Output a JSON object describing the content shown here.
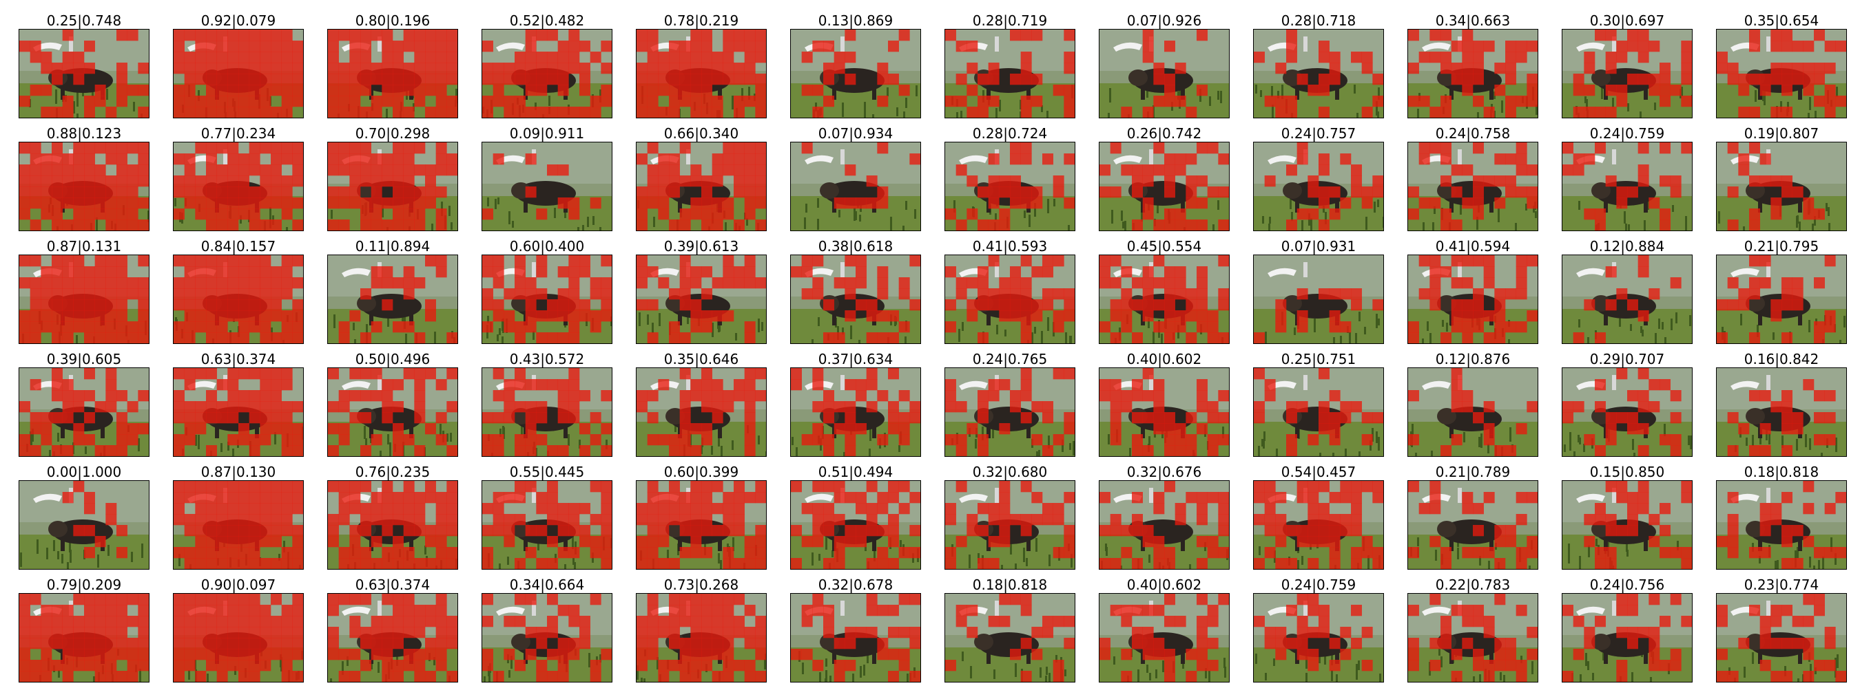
{
  "figure": {
    "rows": 6,
    "cols": 12,
    "overlay_color": "#e8190d",
    "panels": [
      {
        "label": "0.25|0.748"
      },
      {
        "label": "0.92|0.079"
      },
      {
        "label": "0.80|0.196"
      },
      {
        "label": "0.52|0.482"
      },
      {
        "label": "0.78|0.219"
      },
      {
        "label": "0.13|0.869"
      },
      {
        "label": "0.28|0.719"
      },
      {
        "label": "0.07|0.926"
      },
      {
        "label": "0.28|0.718"
      },
      {
        "label": "0.34|0.663"
      },
      {
        "label": "0.30|0.697"
      },
      {
        "label": "0.35|0.654"
      },
      {
        "label": "0.88|0.123"
      },
      {
        "label": "0.77|0.234"
      },
      {
        "label": "0.70|0.298"
      },
      {
        "label": "0.09|0.911"
      },
      {
        "label": "0.66|0.340"
      },
      {
        "label": "0.07|0.934"
      },
      {
        "label": "0.28|0.724"
      },
      {
        "label": "0.26|0.742"
      },
      {
        "label": "0.24|0.757"
      },
      {
        "label": "0.24|0.758"
      },
      {
        "label": "0.24|0.759"
      },
      {
        "label": "0.19|0.807"
      },
      {
        "label": "0.87|0.131"
      },
      {
        "label": "0.84|0.157"
      },
      {
        "label": "0.11|0.894"
      },
      {
        "label": "0.60|0.400"
      },
      {
        "label": "0.39|0.613"
      },
      {
        "label": "0.38|0.618"
      },
      {
        "label": "0.41|0.593"
      },
      {
        "label": "0.45|0.554"
      },
      {
        "label": "0.07|0.931"
      },
      {
        "label": "0.41|0.594"
      },
      {
        "label": "0.12|0.884"
      },
      {
        "label": "0.21|0.795"
      },
      {
        "label": "0.39|0.605"
      },
      {
        "label": "0.63|0.374"
      },
      {
        "label": "0.50|0.496"
      },
      {
        "label": "0.43|0.572"
      },
      {
        "label": "0.35|0.646"
      },
      {
        "label": "0.37|0.634"
      },
      {
        "label": "0.24|0.765"
      },
      {
        "label": "0.40|0.602"
      },
      {
        "label": "0.25|0.751"
      },
      {
        "label": "0.12|0.876"
      },
      {
        "label": "0.29|0.707"
      },
      {
        "label": "0.16|0.842"
      },
      {
        "label": "0.00|1.000"
      },
      {
        "label": "0.87|0.130"
      },
      {
        "label": "0.76|0.235"
      },
      {
        "label": "0.55|0.445"
      },
      {
        "label": "0.60|0.399"
      },
      {
        "label": "0.51|0.494"
      },
      {
        "label": "0.32|0.680"
      },
      {
        "label": "0.32|0.676"
      },
      {
        "label": "0.54|0.457"
      },
      {
        "label": "0.21|0.789"
      },
      {
        "label": "0.15|0.850"
      },
      {
        "label": "0.18|0.818"
      },
      {
        "label": "0.79|0.209"
      },
      {
        "label": "0.90|0.097"
      },
      {
        "label": "0.63|0.374"
      },
      {
        "label": "0.34|0.664"
      },
      {
        "label": "0.73|0.268"
      },
      {
        "label": "0.32|0.678"
      },
      {
        "label": "0.18|0.818"
      },
      {
        "label": "0.40|0.602"
      },
      {
        "label": "0.24|0.759"
      },
      {
        "label": "0.22|0.783"
      },
      {
        "label": "0.24|0.756"
      },
      {
        "label": "0.23|0.774"
      }
    ]
  }
}
